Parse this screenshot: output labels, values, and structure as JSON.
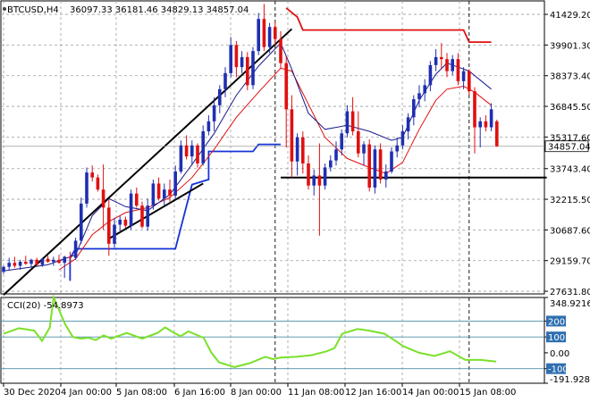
{
  "header": {
    "symbol_tf": "BTCUSD,H4",
    "ohlc": "36097.33 36181.46 34829.13 34857.04"
  },
  "colors": {
    "background": "#ffffff",
    "grid": "#9e9e9e",
    "bull_candle": "#1f2fb0",
    "bear_candle": "#e01010",
    "price_line": "#9e9e9e",
    "price_tag_bg": "#ffffff",
    "dark_ma": "#1a1a8c",
    "red_ma": "#e01010",
    "blue_support": "#1433d6",
    "red_resistance": "#e01010",
    "trendline": "#000000",
    "cci_line": "#7be02a",
    "cci_level": "#4a8fa8",
    "cci_level_tag": "#2f6fb0"
  },
  "chart_data": [
    {
      "type": "candlestick",
      "symbol": "BTCUSD",
      "timeframe": "H4",
      "y_ticks": [
        "41429.20",
        "39901.30",
        "38373.40",
        "36845.50",
        "35317.60",
        "33743.40",
        "32215.50",
        "30687.60",
        "29159.70",
        "27631.80"
      ],
      "ylim": [
        27500,
        42100
      ],
      "x_ticks": [
        "30 Dec 2020",
        "4 Jan 00:00",
        "5 Jan 08:00",
        "6 Jan 16:00",
        "8 Jan 00:00",
        "11 Jan 08:00",
        "12 Jan 16:00",
        "14 Jan 00:00",
        "15 Jan 08:00"
      ],
      "last_price_label": "34857.04",
      "last_price": 34857.04,
      "candles": [
        [
          28600,
          28900,
          28500,
          28850
        ],
        [
          28850,
          29300,
          28700,
          29050
        ],
        [
          29050,
          29350,
          28800,
          28900
        ],
        [
          28900,
          29200,
          28700,
          29100
        ],
        [
          29100,
          29400,
          28950,
          29000
        ],
        [
          29000,
          29250,
          28850,
          29200
        ],
        [
          29200,
          29300,
          28900,
          28950
        ],
        [
          28950,
          29300,
          28850,
          29250
        ],
        [
          29250,
          29400,
          29050,
          29100
        ],
        [
          29100,
          29350,
          28900,
          29200
        ],
        [
          29200,
          29450,
          29000,
          29050
        ],
        [
          29050,
          29400,
          28300,
          29350
        ],
        [
          29350,
          29600,
          29150,
          29300
        ],
        [
          29300,
          30300,
          29200,
          30150
        ],
        [
          30150,
          32300,
          30000,
          32000
        ],
        [
          32000,
          33800,
          31800,
          33550
        ],
        [
          33550,
          33900,
          33100,
          33300
        ],
        [
          33300,
          33450,
          32600,
          32700
        ],
        [
          32700,
          33950,
          30700,
          31800
        ],
        [
          31800,
          32200,
          29400,
          30000
        ],
        [
          30000,
          31300,
          29800,
          30950
        ],
        [
          30950,
          31400,
          30650,
          31200
        ],
        [
          31200,
          31350,
          30800,
          30900
        ],
        [
          30900,
          32700,
          30700,
          32500
        ],
        [
          32500,
          32800,
          31800,
          31900
        ],
        [
          31900,
          32100,
          30750,
          30850
        ],
        [
          30850,
          32250,
          30650,
          31900
        ],
        [
          31900,
          33200,
          31700,
          33000
        ],
        [
          33000,
          33300,
          32150,
          32250
        ],
        [
          32250,
          33000,
          31900,
          32700
        ],
        [
          32700,
          33200,
          32100,
          32400
        ],
        [
          32400,
          33900,
          32200,
          33600
        ],
        [
          33600,
          35150,
          33500,
          34900
        ],
        [
          34900,
          35400,
          34200,
          34350
        ],
        [
          34350,
          35150,
          33900,
          34900
        ],
        [
          34900,
          35000,
          33800,
          34000
        ],
        [
          34000,
          35900,
          33900,
          35600
        ],
        [
          35600,
          36400,
          35400,
          36100
        ],
        [
          36100,
          37300,
          35600,
          36900
        ],
        [
          36900,
          37900,
          36500,
          37700
        ],
        [
          37700,
          38800,
          37300,
          38500
        ],
        [
          38500,
          40300,
          38300,
          39900
        ],
        [
          39900,
          40100,
          38300,
          38800
        ],
        [
          38800,
          39600,
          38500,
          39300
        ],
        [
          39300,
          39550,
          37650,
          37900
        ],
        [
          37900,
          39800,
          37700,
          39600
        ],
        [
          39600,
          41500,
          39400,
          41200
        ],
        [
          41200,
          41950,
          39600,
          39800
        ],
        [
          39800,
          41000,
          39500,
          40800
        ],
        [
          40800,
          41100,
          39900,
          40200
        ],
        [
          40200,
          40600,
          38700,
          39000
        ],
        [
          39000,
          39350,
          34800,
          36700
        ],
        [
          36700,
          37400,
          33300,
          34100
        ],
        [
          34100,
          35500,
          33400,
          35300
        ],
        [
          35300,
          35600,
          33500,
          34000
        ],
        [
          34000,
          34400,
          32700,
          32900
        ],
        [
          32900,
          33700,
          32400,
          33400
        ],
        [
          33400,
          35000,
          30400,
          32900
        ],
        [
          32900,
          34000,
          32700,
          33800
        ],
        [
          33800,
          34400,
          33600,
          34150
        ],
        [
          34150,
          35100,
          33900,
          34700
        ],
        [
          34700,
          35700,
          34400,
          35500
        ],
        [
          35500,
          36900,
          35300,
          36600
        ],
        [
          36600,
          37300,
          35400,
          35600
        ],
        [
          35600,
          36600,
          34300,
          34500
        ],
        [
          34500,
          35100,
          33900,
          34950
        ],
        [
          34950,
          35200,
          32600,
          32800
        ],
        [
          32800,
          34900,
          32500,
          34700
        ],
        [
          34700,
          35000,
          33000,
          33200
        ],
        [
          33200,
          33950,
          32800,
          33600
        ],
        [
          33600,
          34800,
          33500,
          34600
        ],
        [
          34600,
          35300,
          34300,
          34900
        ],
        [
          34900,
          35900,
          34700,
          35600
        ],
        [
          35600,
          36500,
          35200,
          36300
        ],
        [
          36300,
          37400,
          35900,
          37200
        ],
        [
          37200,
          37900,
          36800,
          37500
        ],
        [
          37500,
          38200,
          37100,
          37900
        ],
        [
          37900,
          39100,
          37600,
          38900
        ],
        [
          38900,
          39700,
          38600,
          39300
        ],
        [
          39300,
          40000,
          38700,
          39200
        ],
        [
          39200,
          39500,
          38300,
          38600
        ],
        [
          38600,
          39400,
          38400,
          39200
        ],
        [
          39200,
          39500,
          37900,
          38100
        ],
        [
          38100,
          38800,
          37700,
          38600
        ],
        [
          38600,
          38700,
          37400,
          37600
        ],
        [
          37600,
          37800,
          34500,
          35800
        ],
        [
          35800,
          36300,
          34800,
          36100
        ],
        [
          36100,
          36400,
          35600,
          35800
        ],
        [
          35800,
          37000,
          35600,
          36700
        ],
        [
          36097.33,
          36181.46,
          34829.13,
          34857.04
        ]
      ],
      "dark_ma": [
        [
          0,
          28650
        ],
        [
          8,
          28950
        ],
        [
          13,
          29450
        ],
        [
          16,
          31400
        ],
        [
          19,
          32250
        ],
        [
          22,
          31850
        ],
        [
          26,
          31650
        ],
        [
          30,
          32450
        ],
        [
          34,
          33950
        ],
        [
          38,
          35500
        ],
        [
          42,
          37400
        ],
        [
          46,
          38850
        ],
        [
          50,
          40000
        ],
        [
          52,
          38700
        ],
        [
          55,
          36500
        ],
        [
          58,
          35700
        ],
        [
          62,
          35900
        ],
        [
          66,
          35600
        ],
        [
          70,
          35150
        ],
        [
          72,
          35300
        ],
        [
          75,
          37150
        ],
        [
          78,
          38450
        ],
        [
          80,
          39000
        ],
        [
          84,
          38600
        ],
        [
          88,
          37700
        ]
      ],
      "red_ma": [
        [
          10,
          28700
        ],
        [
          13,
          29250
        ],
        [
          16,
          30450
        ],
        [
          19,
          31100
        ],
        [
          22,
          31550
        ],
        [
          26,
          31800
        ],
        [
          30,
          32300
        ],
        [
          34,
          33300
        ],
        [
          38,
          34700
        ],
        [
          42,
          36300
        ],
        [
          46,
          37550
        ],
        [
          50,
          38750
        ],
        [
          52,
          38600
        ],
        [
          55,
          36950
        ],
        [
          58,
          35300
        ],
        [
          62,
          34250
        ],
        [
          66,
          33800
        ],
        [
          69,
          33500
        ],
        [
          72,
          34050
        ],
        [
          75,
          35700
        ],
        [
          78,
          37150
        ],
        [
          80,
          37700
        ],
        [
          83,
          37850
        ],
        [
          85,
          37550
        ],
        [
          88,
          36900
        ]
      ],
      "blue_support": [
        [
          12,
          28150
        ],
        [
          12,
          29300
        ],
        [
          13,
          29750
        ],
        [
          20,
          29750
        ],
        [
          31,
          29750
        ],
        [
          34,
          32950
        ],
        [
          37,
          33200
        ],
        [
          37,
          34600
        ],
        [
          45,
          34600
        ],
        [
          46,
          34950
        ],
        [
          50,
          34950
        ]
      ],
      "red_resistance": [
        [
          51,
          41750
        ],
        [
          53,
          41300
        ],
        [
          54,
          40650
        ],
        [
          66,
          40650
        ],
        [
          83,
          40650
        ],
        [
          84,
          40050
        ],
        [
          88,
          40050
        ]
      ],
      "horizontal_support": {
        "from": 50,
        "to": 98,
        "y": 33300
      },
      "trendlines": [
        {
          "from": [
            0,
            27450
          ],
          "to": [
            52,
            40700
          ]
        },
        {
          "from": [
            19,
            30250
          ],
          "to": [
            36,
            33000
          ]
        }
      ],
      "vertical_markers": [
        49,
        84
      ]
    },
    {
      "type": "line",
      "indicator": "CCI(20)",
      "label": "CCI(20) -54.8973",
      "value_label": "-54.8973",
      "y_ticks": [
        "348.9216",
        "200",
        "100",
        "0.00",
        "-100",
        "-191.9285"
      ],
      "ylim": [
        -191.9285,
        348.9216
      ],
      "levels": [
        200,
        100,
        -100
      ],
      "values": [
        [
          0,
          120
        ],
        [
          4,
          155
        ],
        [
          8,
          140
        ],
        [
          10,
          75
        ],
        [
          12,
          160
        ],
        [
          13,
          350
        ],
        [
          16,
          180
        ],
        [
          18,
          100
        ],
        [
          20,
          90
        ],
        [
          22,
          95
        ],
        [
          24,
          80
        ],
        [
          26,
          110
        ],
        [
          28,
          90
        ],
        [
          32,
          125
        ],
        [
          36,
          90
        ],
        [
          40,
          125
        ],
        [
          42,
          160
        ],
        [
          44,
          130
        ],
        [
          46,
          105
        ],
        [
          48,
          135
        ],
        [
          52,
          95
        ],
        [
          54,
          0
        ],
        [
          56,
          -60
        ],
        [
          60,
          -90
        ],
        [
          64,
          -65
        ],
        [
          68,
          -25
        ],
        [
          70,
          -40
        ],
        [
          72,
          -30
        ],
        [
          76,
          -25
        ],
        [
          80,
          -15
        ],
        [
          84,
          10
        ],
        [
          86,
          30
        ],
        [
          88,
          120
        ],
        [
          92,
          150
        ],
        [
          95,
          140
        ],
        [
          99,
          120
        ],
        [
          104,
          40
        ],
        [
          108,
          0
        ],
        [
          112,
          -20
        ],
        [
          116,
          10
        ],
        [
          120,
          -45
        ],
        [
          124,
          -45
        ],
        [
          128,
          -55
        ]
      ],
      "values_x_max": 128
    }
  ]
}
